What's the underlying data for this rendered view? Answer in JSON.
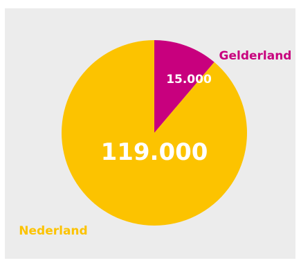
{
  "chart_data": {
    "type": "pie",
    "slices": [
      {
        "label": "Gelderland",
        "value": 15000,
        "value_label": "15.000",
        "color": "#c8007e"
      },
      {
        "label": "Nederland",
        "value": 119000,
        "value_label": "119.000",
        "color": "#fcc300"
      }
    ],
    "background": "#ececec",
    "legend": "labels next to slices"
  }
}
